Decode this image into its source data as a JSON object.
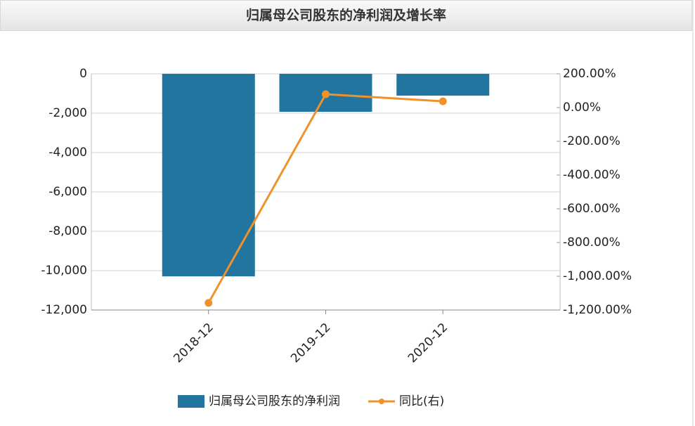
{
  "chart_data": {
    "type": "bar",
    "title": "归属母公司股东的净利润及增长率",
    "categories": [
      "2018-12",
      "2019-12",
      "2020-12"
    ],
    "series": [
      {
        "name": "归属母公司股东的净利润",
        "color": "#21759e",
        "values": [
          -10290,
          -1930,
          -1110
        ]
      },
      {
        "name": "同比(右)",
        "type": "line",
        "axis": "y2",
        "color": "#f0922b",
        "values": [
          -1158,
          79,
          37
        ]
      }
    ],
    "ylim": [
      -12000,
      0
    ],
    "yticks": [
      {
        "value": -12000,
        "label": "-12,000"
      },
      {
        "value": -10000,
        "label": "-10,000"
      },
      {
        "value": -8000,
        "label": "-8,000"
      },
      {
        "value": -6000,
        "label": "-6,000"
      },
      {
        "value": -4000,
        "label": "-4,000"
      },
      {
        "value": -2000,
        "label": "-2,000"
      },
      0
    ],
    "y2lim": [
      -1200,
      200
    ],
    "y2ticks": [
      {
        "value": -1200,
        "label": "-1,200.00%"
      },
      {
        "value": -1000,
        "label": "-1,000.00%"
      },
      {
        "value": -800,
        "label": "-800.00%"
      },
      {
        "value": -600,
        "label": "-600.00%"
      },
      {
        "value": -400,
        "label": "-400.00%"
      },
      {
        "value": -200,
        "label": "-200.00%"
      },
      {
        "value": 0,
        "label": "0.00%"
      },
      {
        "value": 200,
        "label": "200.00%"
      }
    ],
    "grid": true,
    "legend": "bottom"
  }
}
